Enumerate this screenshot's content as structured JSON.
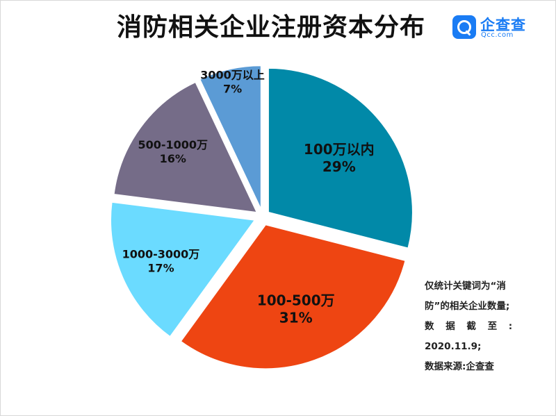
{
  "title": "消防相关企业注册资本分布",
  "logo": {
    "name": "企查查",
    "domain": "Qcc.com",
    "icon": "magnifier-icon",
    "color": "#1a7cf4"
  },
  "chart_data": {
    "type": "pie",
    "title": "消防相关企业注册资本分布",
    "slices": [
      {
        "label": "100万以内",
        "percent_label": "29%",
        "value": 29,
        "color": "#0189a8",
        "label_color": "#111111"
      },
      {
        "label": "100-500万",
        "percent_label": "31%",
        "value": 31,
        "color": "#ee4512",
        "label_color": "#111111"
      },
      {
        "label": "1000-3000万",
        "percent_label": "17%",
        "value": 17,
        "color": "#6bdbff",
        "label_color": "#111111"
      },
      {
        "label": "500-1000万",
        "percent_label": "16%",
        "value": 16,
        "color": "#756c88",
        "label_color": "#111111"
      },
      {
        "label": "3000万以上",
        "percent_label": "7%",
        "value": 7,
        "color": "#5b9bd5",
        "label_color": "#111111"
      }
    ],
    "start": "12 o'clock",
    "direction": "clockwise",
    "exploded": true
  },
  "note": {
    "lines": [
      "仅统计关键词为“消",
      "防”的相关企业数量;",
      "数 据 截 至 :",
      "2020.11.9;",
      "数据来源:企查查"
    ]
  }
}
